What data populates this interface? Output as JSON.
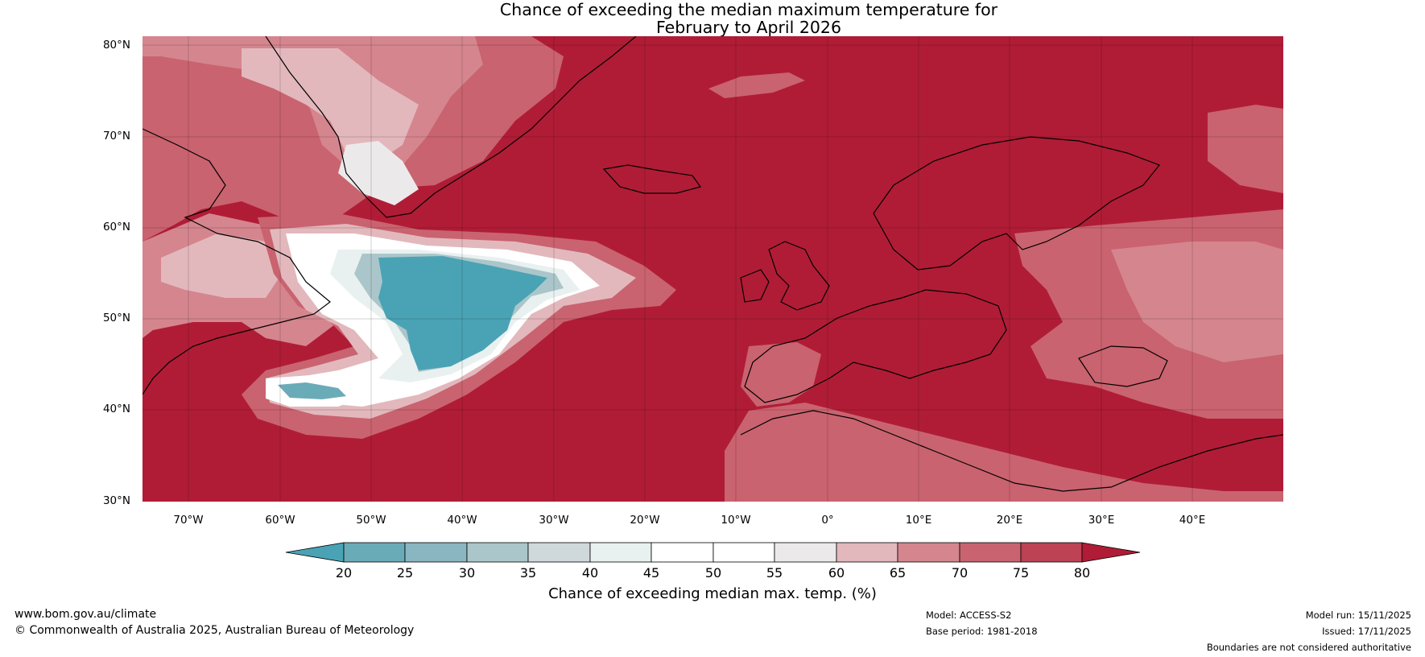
{
  "title_line1": "Chance of exceeding the median maximum temperature for",
  "title_line2": "February to April 2026",
  "map": {
    "lat_labels": [
      "80°N",
      "70°N",
      "60°N",
      "50°N",
      "40°N",
      "30°N"
    ],
    "lon_labels": [
      "70°W",
      "60°W",
      "50°W",
      "40°W",
      "30°W",
      "20°W",
      "10°W",
      "0°",
      "10°E",
      "20°E",
      "30°E",
      "40°E"
    ],
    "lon_range": [
      -75,
      50
    ],
    "lat_range": [
      30,
      81
    ]
  },
  "colorbar": {
    "ticks": [
      "20",
      "25",
      "30",
      "35",
      "40",
      "45",
      "50",
      "55",
      "60",
      "65",
      "70",
      "75",
      "80"
    ],
    "label": "Chance of exceeding median max. temp. (%)",
    "colors": {
      "below20": "#4aa3b5",
      "c20_25": "#6aabb8",
      "c25_30": "#89b6c1",
      "c30_35": "#abc6ca",
      "c35_40": "#cfd8da",
      "c40_45": "#e9f0f0",
      "c45_50": "#ffffff",
      "c50_55": "#ffffff",
      "c55_60": "#ece9ea",
      "c60_65": "#e2b8bd",
      "c65_70": "#d5858e",
      "c70_75": "#c9636f",
      "c75_80": "#bd4253",
      "above80": "#b01c36"
    }
  },
  "footer": {
    "site": "www.bom.gov.au/climate",
    "copyright": "© Commonwealth of Australia 2025, Australian Bureau of Meteorology",
    "model": "Model: ACCESS-S2",
    "base_period": "Base period: 1981-2018",
    "model_run": "Model run: 15/11/2025",
    "issued": "Issued: 17/11/2025",
    "disclaimer": "Boundaries are not considered authoritative"
  }
}
